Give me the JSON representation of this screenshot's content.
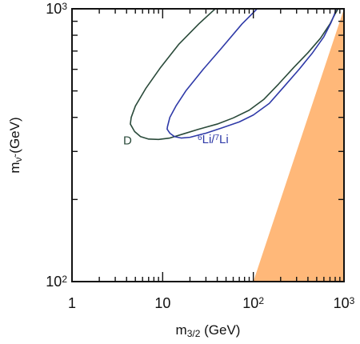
{
  "chart_data": {
    "type": "line",
    "title": "",
    "xlabel_main": "m",
    "xlabel_sub": "3/2",
    "xlabel_unit": " (GeV)",
    "ylabel_main": "m",
    "ylabel_sub": "ν̃",
    "ylabel_unit": " (GeV)",
    "xscale": "log",
    "yscale": "log",
    "xlim": [
      1,
      1000
    ],
    "ylim": [
      100,
      1000
    ],
    "grid": false,
    "x_ticks": [
      {
        "value": 1,
        "base": "1",
        "exp": ""
      },
      {
        "value": 10,
        "base": "10",
        "exp": ""
      },
      {
        "value": 100,
        "base": "10",
        "exp": "2"
      },
      {
        "value": 1000,
        "base": "10",
        "exp": "3"
      }
    ],
    "y_ticks": [
      {
        "value": 100,
        "base": "10",
        "exp": "2"
      },
      {
        "value": 1000,
        "base": "10",
        "exp": "3"
      }
    ],
    "series": [
      {
        "name": "D",
        "color": "#2a4a3a",
        "points": [
          [
            38,
            1000
          ],
          [
            25,
            880
          ],
          [
            15,
            740
          ],
          [
            9.5,
            610
          ],
          [
            6.5,
            510
          ],
          [
            5.0,
            440
          ],
          [
            4.5,
            400
          ],
          [
            4.4,
            378
          ],
          [
            4.9,
            355
          ],
          [
            5.7,
            340
          ],
          [
            7.0,
            333
          ],
          [
            9.0,
            332
          ],
          [
            12,
            336
          ],
          [
            17,
            348
          ],
          [
            25,
            362
          ],
          [
            40,
            378
          ],
          [
            60,
            398
          ],
          [
            90,
            425
          ],
          [
            130,
            465
          ],
          [
            190,
            530
          ],
          [
            280,
            610
          ],
          [
            400,
            690
          ],
          [
            550,
            780
          ],
          [
            700,
            880
          ],
          [
            800,
            960
          ],
          [
            860,
            1000
          ]
        ]
      },
      {
        "name": "6Li/7Li",
        "label_parts": [
          {
            "sup": "6",
            "text": "Li/"
          },
          {
            "sup": "7",
            "text": "Li"
          }
        ],
        "color": "#2f3aa8",
        "points": [
          [
            110,
            1000
          ],
          [
            75,
            880
          ],
          [
            45,
            720
          ],
          [
            28,
            600
          ],
          [
            18,
            500
          ],
          [
            14,
            440
          ],
          [
            12,
            400
          ],
          [
            11.3,
            370
          ],
          [
            11.2,
            362
          ],
          [
            12,
            350
          ],
          [
            13.5,
            340
          ],
          [
            16,
            336
          ],
          [
            20,
            338
          ],
          [
            30,
            350
          ],
          [
            45,
            366
          ],
          [
            70,
            385
          ],
          [
            100,
            408
          ],
          [
            150,
            450
          ],
          [
            220,
            520
          ],
          [
            320,
            600
          ],
          [
            450,
            690
          ],
          [
            600,
            790
          ],
          [
            720,
            890
          ],
          [
            790,
            960
          ],
          [
            820,
            1000
          ]
        ]
      }
    ],
    "shaded_region": {
      "color": "#ffb879",
      "points": [
        [
          100,
          100
        ],
        [
          1000,
          100
        ],
        [
          1000,
          1000
        ]
      ]
    },
    "annotations": [
      {
        "series": "D",
        "text": "D",
        "at": [
          4.1,
          318
        ]
      },
      {
        "series": "6Li/7Li",
        "at": [
          36,
          322
        ]
      }
    ]
  }
}
